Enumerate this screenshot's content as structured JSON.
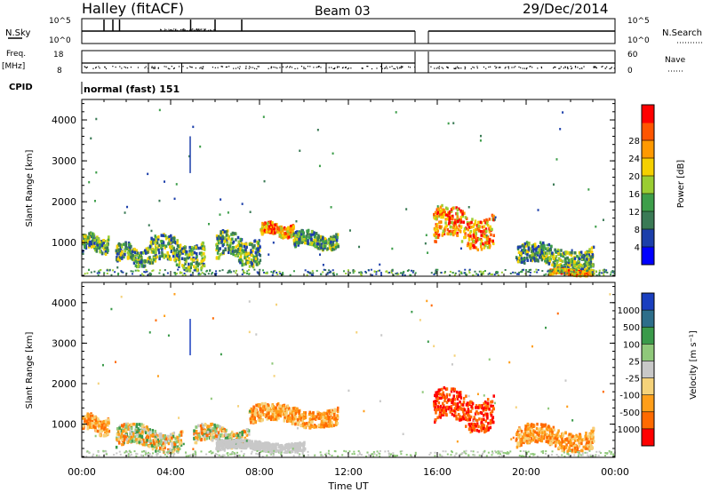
{
  "header": {
    "station": "Halley (fitACF)",
    "beam": "Beam 03",
    "date": "29/Dec/2014"
  },
  "params": {
    "nsky_label": "N.Sky",
    "nsky_ticks": [
      "10^5",
      "10^0"
    ],
    "nsearch_label": "N.Search",
    "nsearch_ticks": [
      "10^5",
      "10^0"
    ],
    "freq_label": "Freq.",
    "freq_unit": "[MHz]",
    "freq_ticks": [
      "18",
      "8"
    ],
    "nave_label": "Nave",
    "nave_ticks": [
      "60",
      "0"
    ],
    "cpid_label": "CPID",
    "cpid_value": "normal (fast) 151"
  },
  "chart_data": [
    {
      "type": "heatmap",
      "panel": "power",
      "ylabel": "Slant Range [km]",
      "yticks": [
        "1000",
        "2000",
        "3000",
        "4000"
      ],
      "ylim": [
        180,
        4500
      ],
      "xlim": [
        0,
        24
      ],
      "colorbar": {
        "label": "Power [dB]",
        "ticks": [
          "4",
          "8",
          "12",
          "16",
          "20",
          "24",
          "28"
        ],
        "range": [
          0,
          30
        ],
        "colors": [
          "#0000ff",
          "#1c3faa",
          "#3a7a55",
          "#3d9e4a",
          "#9acd32",
          "#f5d000",
          "#ff9900",
          "#ff5500",
          "#ff0000"
        ]
      },
      "echo_regions_hours_km": [
        {
          "t": [
            0.0,
            1.2
          ],
          "r": [
            700,
            1250
          ],
          "level": "medium"
        },
        {
          "t": [
            1.5,
            3.0
          ],
          "r": [
            400,
            1000
          ],
          "level": "medium"
        },
        {
          "t": [
            3.0,
            5.5
          ],
          "r": [
            300,
            1200
          ],
          "level": "medium"
        },
        {
          "t": [
            6.0,
            8.0
          ],
          "r": [
            400,
            1300
          ],
          "level": "medium"
        },
        {
          "t": [
            8.0,
            9.5
          ],
          "r": [
            1100,
            1500
          ],
          "level": "high"
        },
        {
          "t": [
            9.5,
            11.5
          ],
          "r": [
            800,
            1300
          ],
          "level": "medium"
        },
        {
          "t": [
            15.8,
            18.5
          ],
          "r": [
            800,
            1900
          ],
          "level": "high"
        },
        {
          "t": [
            19.5,
            23.0
          ],
          "r": [
            300,
            1000
          ],
          "level": "medium"
        },
        {
          "t": [
            21.0,
            23.0
          ],
          "r": [
            180,
            350
          ],
          "level": "high"
        }
      ]
    },
    {
      "type": "heatmap",
      "panel": "velocity",
      "ylabel": "Slant Range [km]",
      "yticks": [
        "1000",
        "2000",
        "3000",
        "4000"
      ],
      "ylim": [
        180,
        4500
      ],
      "xlim": [
        0,
        24
      ],
      "xlabel": "Time UT",
      "xticks": [
        "00:00",
        "04:00",
        "08:00",
        "12:00",
        "16:00",
        "20:00",
        "00:00"
      ],
      "colorbar": {
        "label": "Velocity [m s⁻¹]",
        "ticks": [
          "1000",
          "500",
          "100",
          "25",
          "-25",
          "-100",
          "-500",
          "-1000"
        ],
        "colors": [
          "#1a3fbf",
          "#2d6e8a",
          "#3a9a4a",
          "#8fc87a",
          "#c8c8c8",
          "#f5d27a",
          "#ff9e1a",
          "#ff6a00",
          "#ff0000"
        ]
      },
      "echo_regions_hours_km": [
        {
          "t": [
            0.0,
            1.2
          ],
          "r": [
            700,
            1250
          ],
          "sign": "negative"
        },
        {
          "t": [
            1.5,
            4.5
          ],
          "r": [
            300,
            1000
          ],
          "sign": "mixed"
        },
        {
          "t": [
            5.0,
            7.5
          ],
          "r": [
            400,
            1000
          ],
          "sign": "mixed"
        },
        {
          "t": [
            7.5,
            11.5
          ],
          "r": [
            900,
            1500
          ],
          "sign": "negative"
        },
        {
          "t": [
            6.0,
            10.0
          ],
          "r": [
            300,
            600
          ],
          "sign": "near-zero"
        },
        {
          "t": [
            15.8,
            18.5
          ],
          "r": [
            800,
            1900
          ],
          "sign": "strong-negative"
        },
        {
          "t": [
            19.5,
            23.0
          ],
          "r": [
            300,
            1000
          ],
          "sign": "negative"
        }
      ]
    }
  ]
}
